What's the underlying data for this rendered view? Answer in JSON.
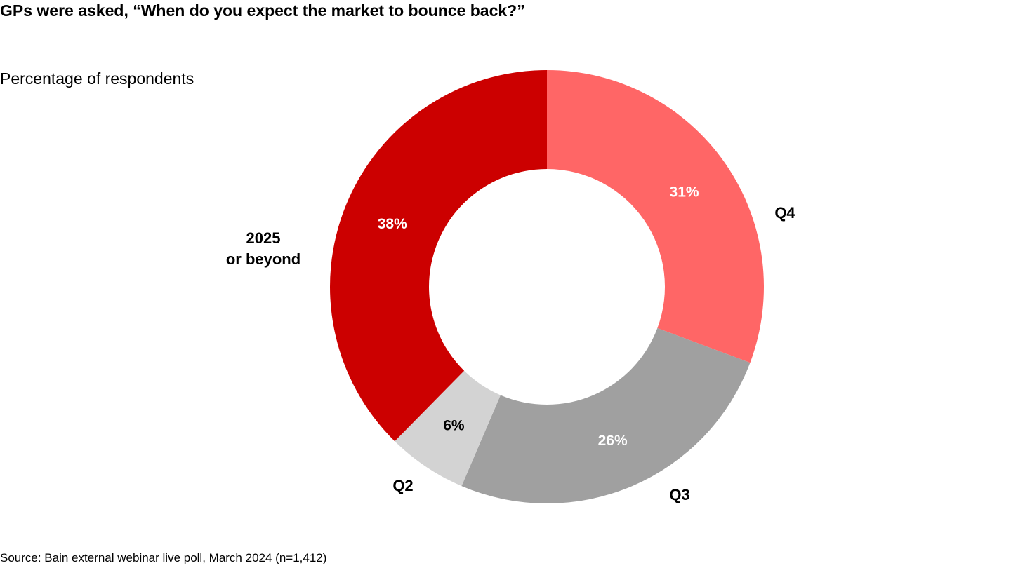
{
  "chart_data": {
    "type": "pie",
    "donut": true,
    "title": "GPs were asked, “When do you expect the market to bounce back?”",
    "subtitle": "Percentage of respondents",
    "source": "Source: Bain external webinar live poll, March 2024 (n=1,412)",
    "slices": [
      {
        "label": "Q4",
        "value": 31,
        "data_label": "31%",
        "color": "#ff6666",
        "label_color": "#ffffff"
      },
      {
        "label": "Q3",
        "value": 26,
        "data_label": "26%",
        "color": "#a0a0a0",
        "label_color": "#ffffff"
      },
      {
        "label": "Q2",
        "value": 6,
        "data_label": "6%",
        "color": "#d3d3d3",
        "label_color": "#000000"
      },
      {
        "label": "2025 or beyond",
        "value": 38,
        "data_label": "38%",
        "color": "#cc0000",
        "label_color": "#ffffff"
      }
    ]
  }
}
